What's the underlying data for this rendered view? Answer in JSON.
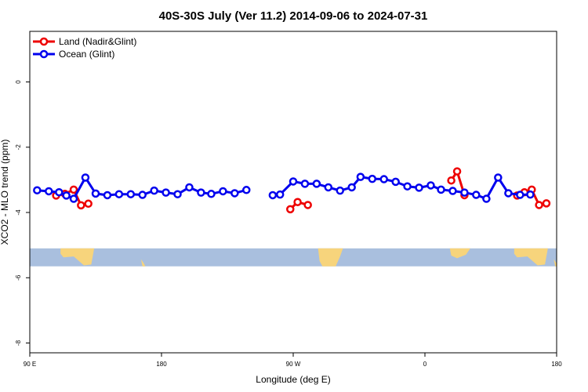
{
  "chart_data": {
    "type": "line",
    "title": "40S-30S July (Ver 11.2)   2014-09-06 to 2024-07-31",
    "xlabel": "Longitude (deg E)",
    "ylabel": "XCO2 - MLO trend (ppm)",
    "xlim": [
      90,
      450
    ],
    "ylim": [
      -8.3,
      1.55
    ],
    "x_ticks": [
      {
        "value": 90,
        "label": "90 E"
      },
      {
        "value": 180,
        "label": "180"
      },
      {
        "value": 270,
        "label": "90 W"
      },
      {
        "value": 360,
        "label": "0"
      },
      {
        "value": 450,
        "label": "180"
      }
    ],
    "y_ticks": [
      0,
      -2,
      -4,
      -6,
      -8
    ],
    "legend": {
      "position": "top-left",
      "entries": [
        {
          "name": "Land (Nadir&Glint)",
          "color": "#ee0000"
        },
        {
          "name": "Ocean (Glint)",
          "color": "#0000ee"
        }
      ]
    },
    "map_band": {
      "y_range": [
        -5.65,
        -5.1
      ],
      "ocean_color": "#a9bfde",
      "land_color": "#f7d47c"
    },
    "series": [
      {
        "name": "Land (Nadir&Glint)",
        "color": "#ee0000",
        "segments": [
          [
            [
              108,
              -3.48
            ],
            [
              114,
              -3.43
            ],
            [
              120,
              -3.3
            ],
            [
              125,
              -3.78
            ],
            [
              130,
              -3.73
            ]
          ],
          [
            [
              268,
              -3.9
            ],
            [
              273,
              -3.68
            ],
            [
              280,
              -3.77
            ]
          ],
          [
            [
              378,
              -3.02
            ],
            [
              382,
              -2.74
            ],
            [
              387,
              -3.47
            ]
          ],
          [
            [
              423,
              -3.48
            ],
            [
              428,
              -3.38
            ],
            [
              433,
              -3.3
            ],
            [
              438,
              -3.77
            ],
            [
              443,
              -3.72
            ]
          ]
        ]
      },
      {
        "name": "Ocean (Glint)",
        "color": "#0000ee",
        "segments": [
          [
            [
              95,
              -3.32
            ],
            [
              103,
              -3.35
            ],
            [
              110,
              -3.38
            ],
            [
              115,
              -3.48
            ],
            [
              120,
              -3.58
            ],
            [
              128,
              -2.93
            ],
            [
              135,
              -3.42
            ],
            [
              143,
              -3.47
            ],
            [
              151,
              -3.44
            ],
            [
              159,
              -3.44
            ],
            [
              167,
              -3.46
            ],
            [
              175,
              -3.33
            ],
            [
              183,
              -3.39
            ],
            [
              191,
              -3.44
            ],
            [
              199,
              -3.23
            ],
            [
              207,
              -3.39
            ],
            [
              214,
              -3.43
            ],
            [
              222,
              -3.35
            ],
            [
              230,
              -3.41
            ],
            [
              238,
              -3.31
            ]
          ],
          [
            [
              256,
              -3.47
            ],
            [
              261,
              -3.45
            ],
            [
              270,
              -3.05
            ],
            [
              278,
              -3.12
            ],
            [
              286,
              -3.12
            ],
            [
              294,
              -3.23
            ],
            [
              302,
              -3.33
            ],
            [
              310,
              -3.23
            ],
            [
              316,
              -2.91
            ],
            [
              324,
              -2.97
            ],
            [
              332,
              -2.98
            ],
            [
              340,
              -3.06
            ],
            [
              348,
              -3.2
            ],
            [
              356,
              -3.24
            ],
            [
              364,
              -3.17
            ],
            [
              371,
              -3.3
            ],
            [
              379,
              -3.34
            ],
            [
              387,
              -3.39
            ],
            [
              395,
              -3.46
            ],
            [
              402,
              -3.58
            ],
            [
              410,
              -2.93
            ],
            [
              417,
              -3.41
            ],
            [
              425,
              -3.46
            ],
            [
              432,
              -3.45
            ]
          ]
        ]
      }
    ]
  }
}
